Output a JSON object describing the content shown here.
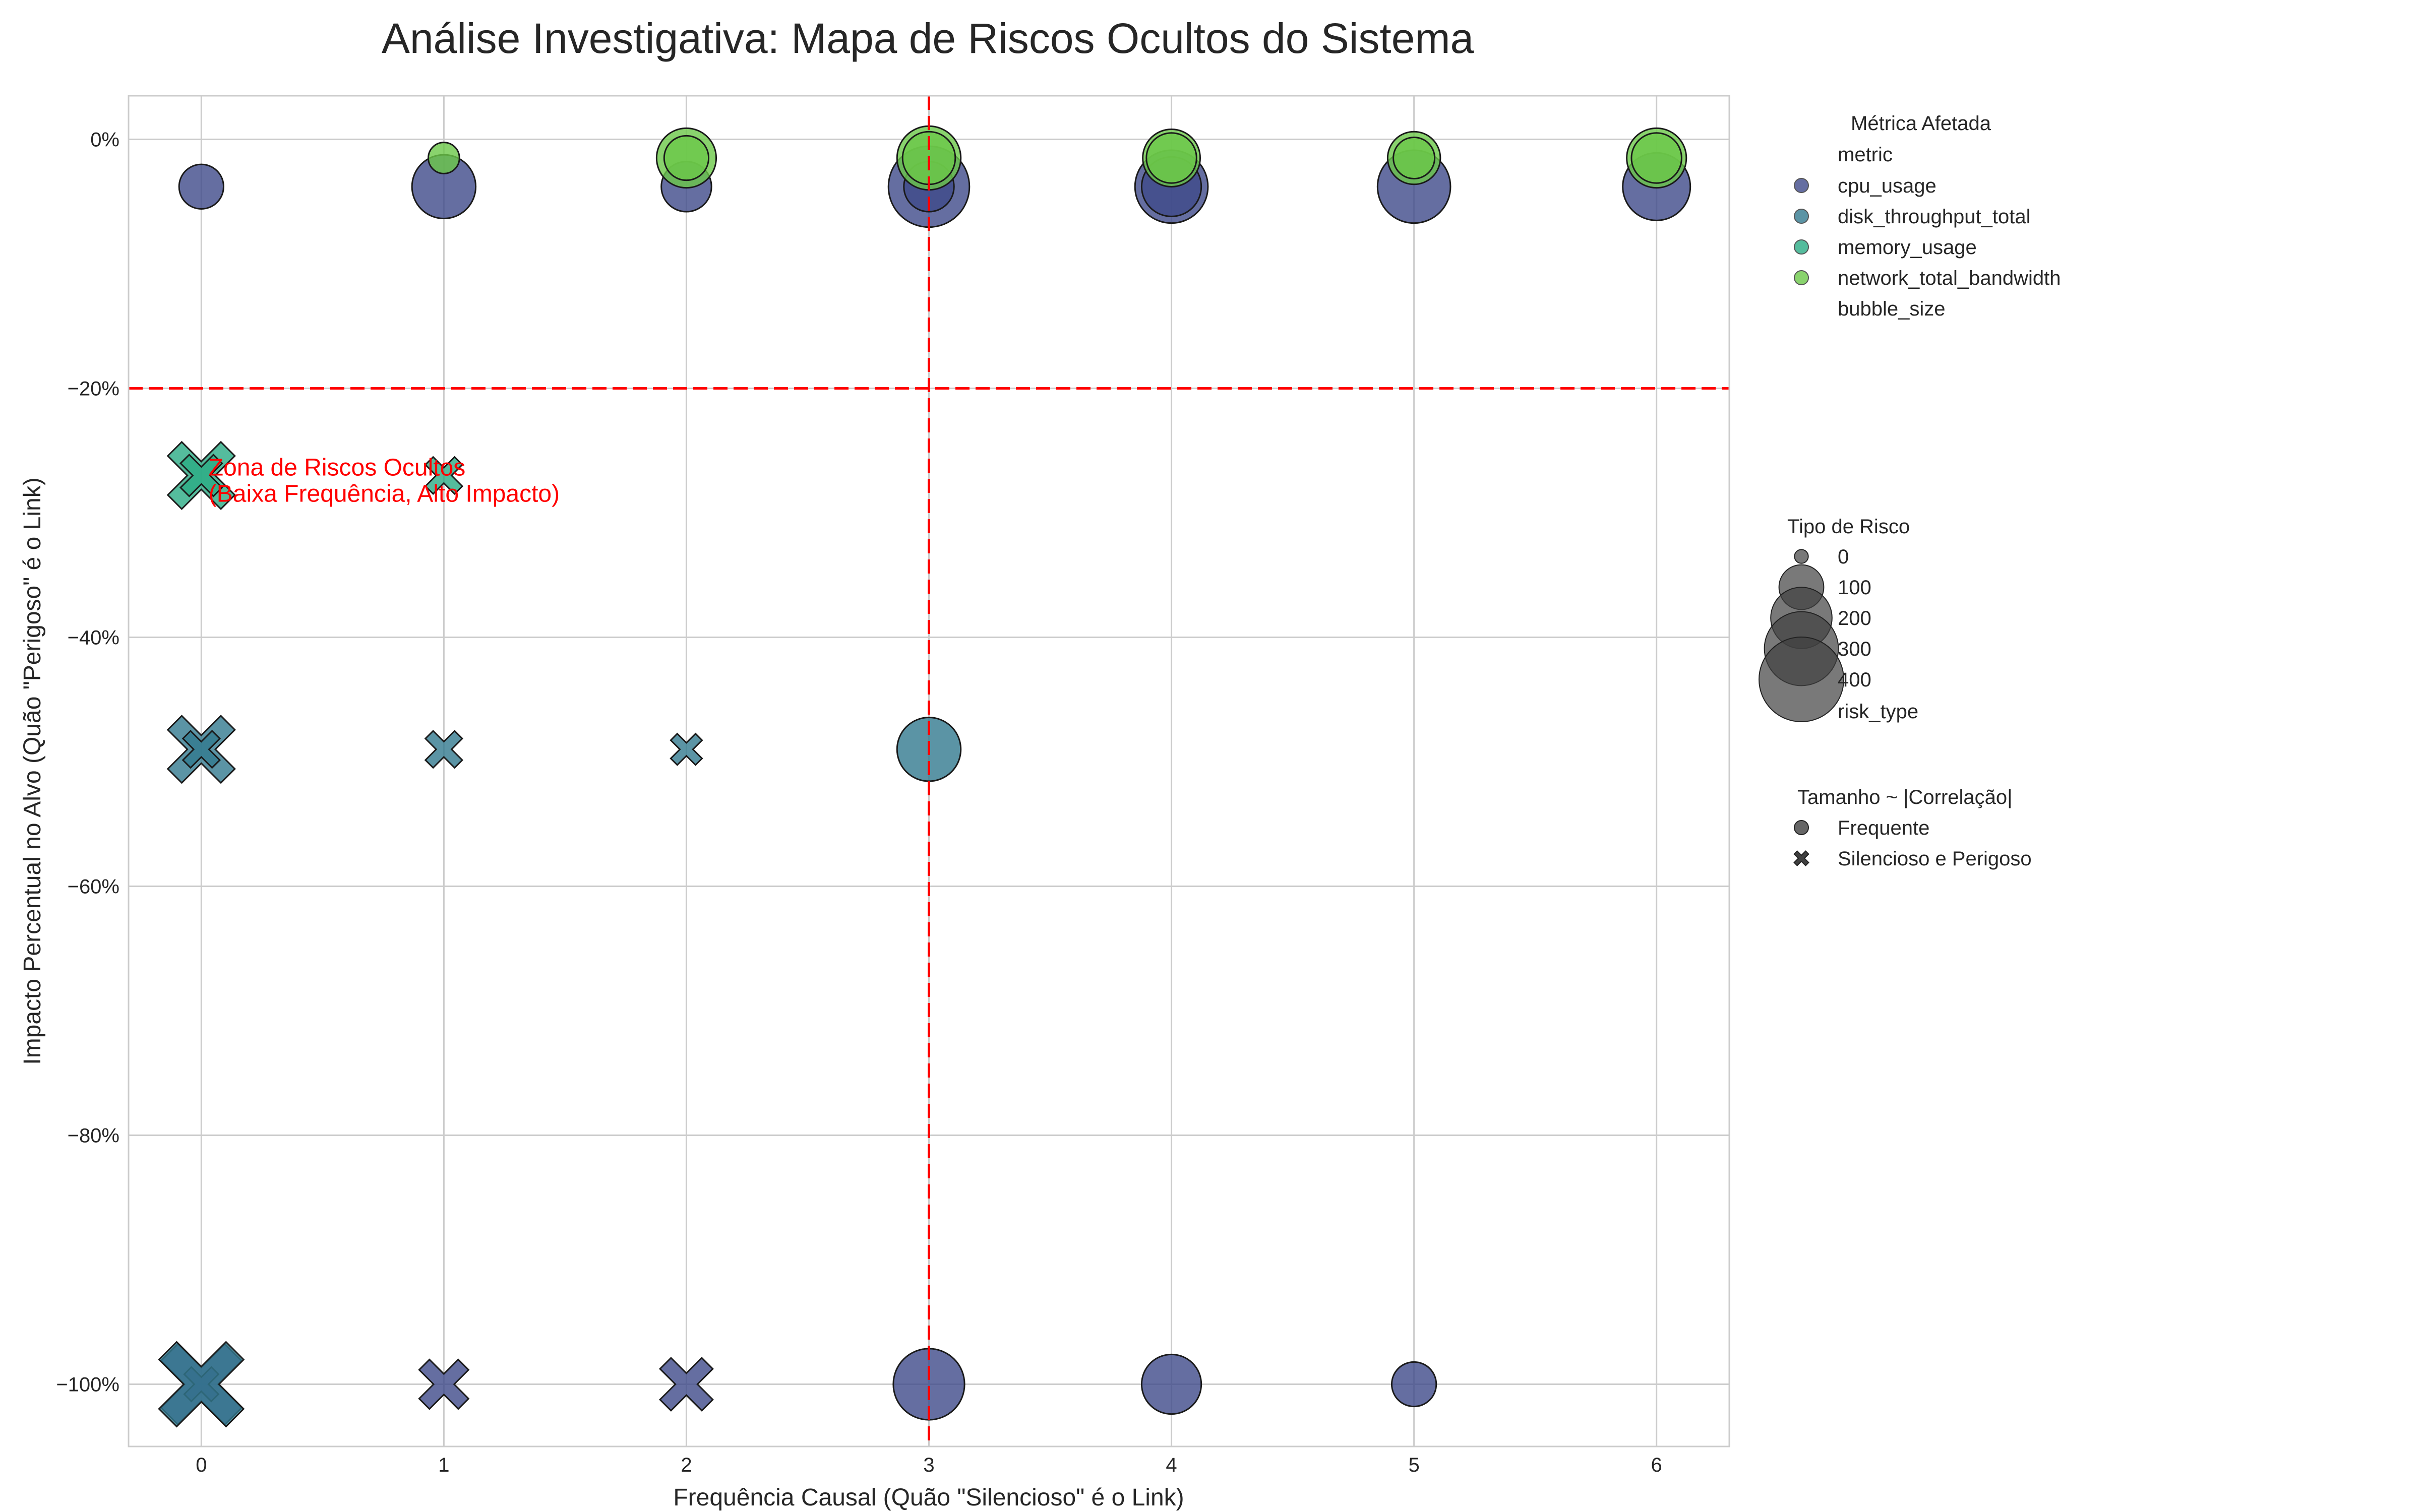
{
  "chart_data": {
    "type": "scatter",
    "title": "Análise Investigativa: Mapa de Riscos Ocultos do Sistema",
    "xlabel": "Frequência Causal (Quão \"Silencioso\" é o Link)",
    "ylabel": "Impacto Percentual no Alvo (Quão \"Perigoso\" é o Link)",
    "xlim": [
      -0.3,
      6.3
    ],
    "ylim": [
      -105,
      3.5
    ],
    "x_ticks": [
      0,
      1,
      2,
      3,
      4,
      5,
      6
    ],
    "x_tick_labels": [
      "0",
      "1",
      "2",
      "3",
      "4",
      "5",
      "6"
    ],
    "y_ticks": [
      0,
      -20,
      -40,
      -60,
      -80,
      -100
    ],
    "y_tick_labels": [
      "0%",
      "−20%",
      "−40%",
      "−60%",
      "−80%",
      "−100%"
    ],
    "grid": true,
    "threshold_lines": {
      "x": 3,
      "y": -20,
      "color": "#ff0000"
    },
    "annotation": {
      "lines": [
        "Zona de Riscos Ocultos",
        "(Baixa Frequência, Alto Impacto)"
      ],
      "x": 0.03,
      "y": -27
    },
    "series": [
      {
        "name": "cpu_usage",
        "color": "#3f4a8a",
        "points": [
          {
            "x": 0,
            "y": -3.8,
            "size": 30,
            "marker": "circle"
          },
          {
            "x": 1,
            "y": -3.8,
            "size": 70,
            "marker": "circle"
          },
          {
            "x": 2,
            "y": -3.8,
            "size": 40,
            "marker": "circle"
          },
          {
            "x": 3,
            "y": -3.8,
            "size": 120,
            "marker": "circle"
          },
          {
            "x": 3,
            "y": -3.8,
            "size": 40,
            "marker": "circle"
          },
          {
            "x": 4,
            "y": -3.8,
            "size": 95,
            "marker": "circle"
          },
          {
            "x": 4,
            "y": -3.8,
            "size": 60,
            "marker": "circle"
          },
          {
            "x": 5,
            "y": -3.8,
            "size": 95,
            "marker": "circle"
          },
          {
            "x": 6,
            "y": -3.8,
            "size": 80,
            "marker": "circle"
          },
          {
            "x": 0,
            "y": -100,
            "size": 180,
            "marker": "x"
          },
          {
            "x": 0,
            "y": -100,
            "size": 25,
            "marker": "x"
          },
          {
            "x": 1,
            "y": -100,
            "size": 60,
            "marker": "x"
          },
          {
            "x": 2,
            "y": -100,
            "size": 70,
            "marker": "x"
          },
          {
            "x": 3,
            "y": -100,
            "size": 90,
            "marker": "circle"
          },
          {
            "x": 4,
            "y": -100,
            "size": 60,
            "marker": "circle"
          },
          {
            "x": 5,
            "y": -100,
            "size": 30,
            "marker": "circle"
          }
        ]
      },
      {
        "name": "disk_throughput_total",
        "color": "#32798f",
        "points": [
          {
            "x": 0,
            "y": -49,
            "size": 120,
            "marker": "x"
          },
          {
            "x": 0,
            "y": -49,
            "size": 30,
            "marker": "x"
          },
          {
            "x": 1,
            "y": -49,
            "size": 30,
            "marker": "x"
          },
          {
            "x": 2,
            "y": -49,
            "size": 20,
            "marker": "x"
          },
          {
            "x": 3,
            "y": -49,
            "size": 70,
            "marker": "circle"
          },
          {
            "x": 0,
            "y": -100,
            "size": 200,
            "marker": "x"
          }
        ]
      },
      {
        "name": "memory_usage",
        "color": "#2aab84",
        "points": [
          {
            "x": 0,
            "y": -27,
            "size": 120,
            "marker": "x"
          },
          {
            "x": 0,
            "y": -27,
            "size": 40,
            "marker": "x"
          },
          {
            "x": 1,
            "y": -27,
            "size": 30,
            "marker": "x"
          }
        ]
      },
      {
        "name": "network_total_bandwidth",
        "color": "#6cc849",
        "points": [
          {
            "x": 1,
            "y": -1.5,
            "size": 12,
            "marker": "circle"
          },
          {
            "x": 2,
            "y": -1.5,
            "size": 60,
            "marker": "circle"
          },
          {
            "x": 2,
            "y": -1.5,
            "size": 30,
            "marker": "circle"
          },
          {
            "x": 3,
            "y": -1.5,
            "size": 70,
            "marker": "circle"
          },
          {
            "x": 3,
            "y": -1.5,
            "size": 45,
            "marker": "circle"
          },
          {
            "x": 4,
            "y": -1.5,
            "size": 55,
            "marker": "circle"
          },
          {
            "x": 4,
            "y": -1.5,
            "size": 40,
            "marker": "circle"
          },
          {
            "x": 5,
            "y": -1.5,
            "size": 45,
            "marker": "circle"
          },
          {
            "x": 5,
            "y": -1.5,
            "size": 25,
            "marker": "circle"
          },
          {
            "x": 6,
            "y": -1.5,
            "size": 60,
            "marker": "circle"
          },
          {
            "x": 6,
            "y": -1.5,
            "size": 40,
            "marker": "circle"
          }
        ]
      }
    ],
    "legend": {
      "placement": "outside-right",
      "metric_section": {
        "title": "Métrica Afetada",
        "header": "metric",
        "entries": [
          {
            "label": "cpu_usage",
            "color": "#3f4a8a"
          },
          {
            "label": "disk_throughput_total",
            "color": "#32798f"
          },
          {
            "label": "memory_usage",
            "color": "#2aab84"
          },
          {
            "label": "network_total_bandwidth",
            "color": "#6cc849"
          }
        ],
        "footer": "bubble_size"
      },
      "size_section": {
        "title": "Tipo de Risco",
        "entries": [
          {
            "label": "0",
            "size": 5
          },
          {
            "label": "100",
            "size": 100
          },
          {
            "label": "200",
            "size": 200
          },
          {
            "label": "300",
            "size": 300
          },
          {
            "label": "400",
            "size": 400
          }
        ],
        "footer": "risk_type"
      },
      "marker_section": {
        "title": "Tamanho ~ |Correlação|",
        "entries": [
          {
            "label": "Frequente",
            "marker": "circle"
          },
          {
            "label": "Silencioso e Perigoso",
            "marker": "x"
          }
        ]
      }
    }
  }
}
